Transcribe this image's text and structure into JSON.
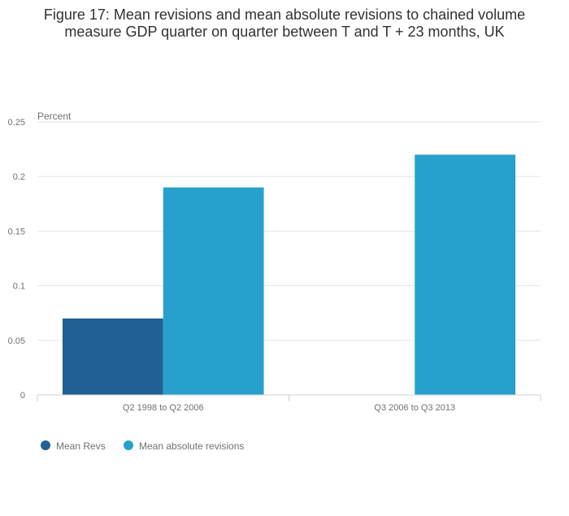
{
  "chart_data": {
    "type": "bar",
    "title": "Figure 17: Mean revisions and mean absolute revisions to chained volume measure GDP quarter on quarter between T and T + 23 months, UK",
    "title_lines": [
      "Figure 17: Mean revisions and mean absolute revisions to chained volume",
      "measure GDP quarter on quarter between T and T + 23 months, UK"
    ],
    "ylabel": "Percent",
    "xlabel": "",
    "categories": [
      "Q2 1998 to Q2 2006",
      "Q3 2006 to Q3 2013"
    ],
    "series": [
      {
        "name": "Mean Revs",
        "color": "#206095",
        "values": [
          0.07,
          0
        ]
      },
      {
        "name": "Mean absolute revisions",
        "color": "#27a0cc",
        "values": [
          0.19,
          0.22
        ]
      }
    ],
    "ylim": [
      0,
      0.25
    ],
    "yticks": [
      0,
      0.05,
      0.1,
      0.15,
      0.2,
      0.25
    ],
    "ytick_labels": [
      "0",
      "0.05",
      "0.1",
      "0.15",
      "0.2",
      "0.25"
    ],
    "grid": true,
    "legend_position": "bottom-left"
  }
}
